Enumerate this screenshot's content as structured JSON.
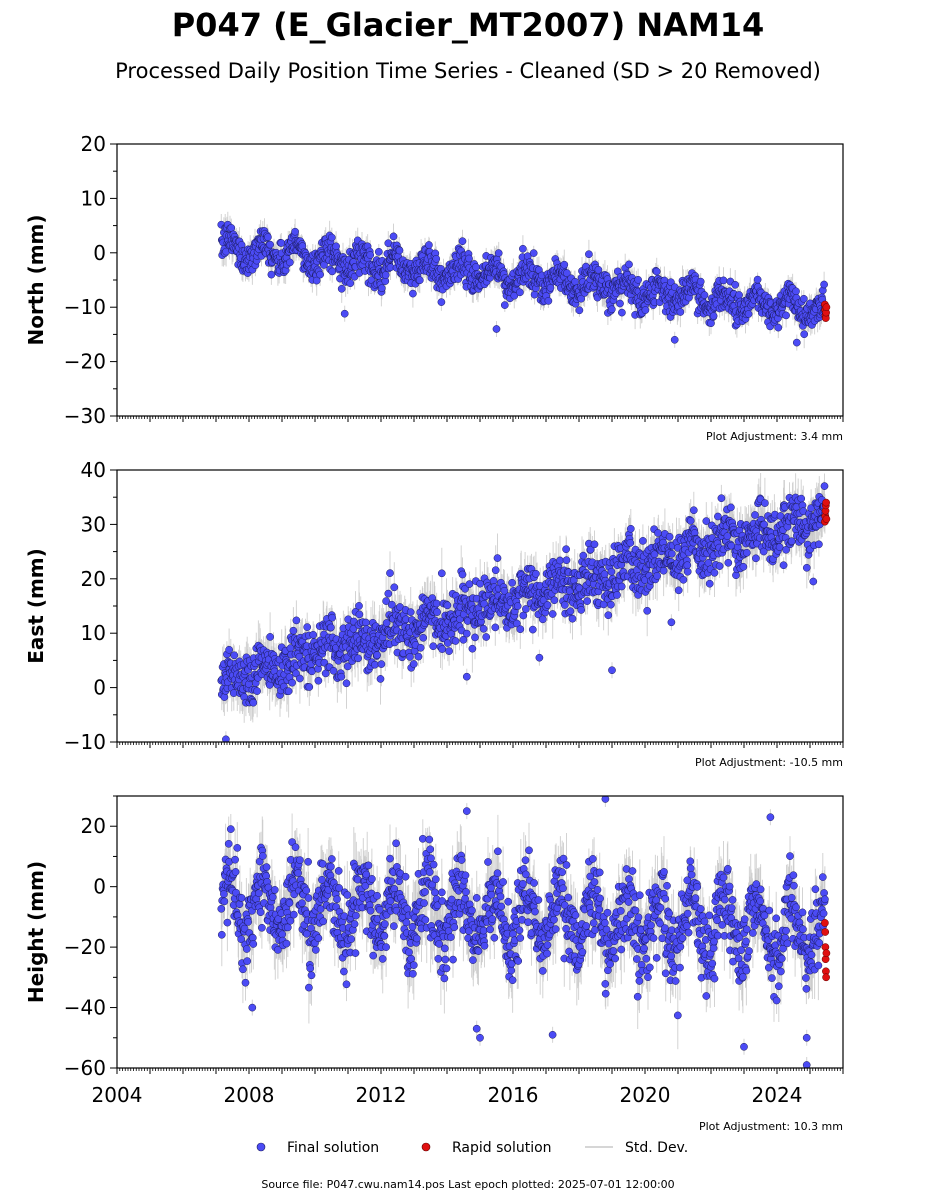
{
  "title": "P047 (E_Glacier_MT2007) NAM14",
  "subtitle": "Processed Daily Position Time Series - Cleaned (SD > 20 Removed)",
  "colors": {
    "final": "#4b4bf5",
    "final_edge": "#1a1a5a",
    "rapid": "#e01010",
    "rapid_edge": "#5a0000",
    "std": "#c8c8c8",
    "trend": "#20204a"
  },
  "legend": [
    {
      "label": "Final solution",
      "marker": "final"
    },
    {
      "label": "Rapid solution",
      "marker": "rapid"
    },
    {
      "label": "Std. Dev.",
      "marker": "std"
    }
  ],
  "footer": "Source file: P047.cwu.nam14.pos  Last epoch plotted: 2025-07-01 12:00:00",
  "chart_data": [
    {
      "type": "scatter",
      "name": "north",
      "ylabel": "North (mm)",
      "ylim": [
        -30,
        20
      ],
      "yticks": [
        20,
        10,
        0,
        -10,
        -20,
        -30
      ],
      "xlim": [
        "2004-01-01",
        "2026-01-01"
      ],
      "x_tick_labels_shown": false,
      "adjustment": "Plot Adjustment: 3.4 mm",
      "series": [
        {
          "name": "Final solution",
          "start": "2007-03-01",
          "end": "2025-06-15",
          "trend_start": 1.0,
          "trend_end": -10.5,
          "annual_amplitude": 1.8,
          "scatter": 1.5,
          "outliers": [
            [
              2010.9,
              -11.2
            ],
            [
              2015.5,
              -14
            ],
            [
              2020.9,
              -16
            ],
            [
              2024.6,
              -16.5
            ],
            [
              2019.3,
              -11
            ]
          ]
        },
        {
          "name": "Rapid solution",
          "start": "2025-06-15",
          "end": "2025-07-01",
          "values": [
            -9.5,
            -10.5,
            -11.5,
            -12.0,
            -11.0,
            -10.0
          ]
        }
      ]
    },
    {
      "type": "scatter",
      "name": "east",
      "ylabel": "East (mm)",
      "ylim": [
        -10,
        40
      ],
      "yticks": [
        40,
        30,
        20,
        10,
        0,
        -10
      ],
      "xlim": [
        "2004-01-01",
        "2026-01-01"
      ],
      "x_tick_labels_shown": false,
      "adjustment": "Plot Adjustment: -10.5 mm",
      "series": [
        {
          "name": "Final solution",
          "start": "2007-03-01",
          "end": "2025-06-15",
          "trend_start": 1.5,
          "trend_end": 31.5,
          "annual_amplitude": 1.5,
          "scatter": 2.6,
          "outliers": [
            [
              2007.3,
              -9.5
            ],
            [
              2014.6,
              2.0
            ],
            [
              2016.8,
              5.5
            ],
            [
              2019.0,
              3.2
            ],
            [
              2020.8,
              12.0
            ],
            [
              2024.2,
              22.5
            ],
            [
              2025.1,
              19.5
            ]
          ]
        },
        {
          "name": "Rapid solution",
          "start": "2025-06-15",
          "end": "2025-07-01",
          "values": [
            30.5,
            31.5,
            32.5,
            33.5,
            34.0,
            31.0
          ]
        }
      ]
    },
    {
      "type": "scatter",
      "name": "height",
      "ylabel": "Height (mm)",
      "ylim": [
        -60,
        30
      ],
      "yticks": [
        20,
        0,
        -20,
        -40,
        -60
      ],
      "xlim": [
        "2004-01-01",
        "2026-01-01"
      ],
      "x_tick_labels": [
        "2004",
        "2008",
        "2012",
        "2016",
        "2020",
        "2024"
      ],
      "adjustment": "Plot Adjustment: 10.3 mm",
      "series": [
        {
          "name": "Final solution",
          "start": "2007-03-01",
          "end": "2025-06-15",
          "trend_start": -5.0,
          "trend_end": -15.0,
          "annual_amplitude": 9.0,
          "scatter": 6.5,
          "outliers": [
            [
              2008.1,
              -40
            ],
            [
              2014.6,
              25
            ],
            [
              2014.9,
              -47
            ],
            [
              2015.0,
              -50
            ],
            [
              2018.8,
              29
            ],
            [
              2023.0,
              -53
            ],
            [
              2023.8,
              23
            ],
            [
              2024.9,
              -59
            ],
            [
              2024.9,
              -50
            ],
            [
              2017.2,
              -49
            ]
          ]
        },
        {
          "name": "Rapid solution",
          "start": "2025-06-15",
          "end": "2025-07-01",
          "values": [
            -12,
            -15,
            -20,
            -24,
            -28,
            -30,
            -22
          ]
        }
      ]
    }
  ]
}
